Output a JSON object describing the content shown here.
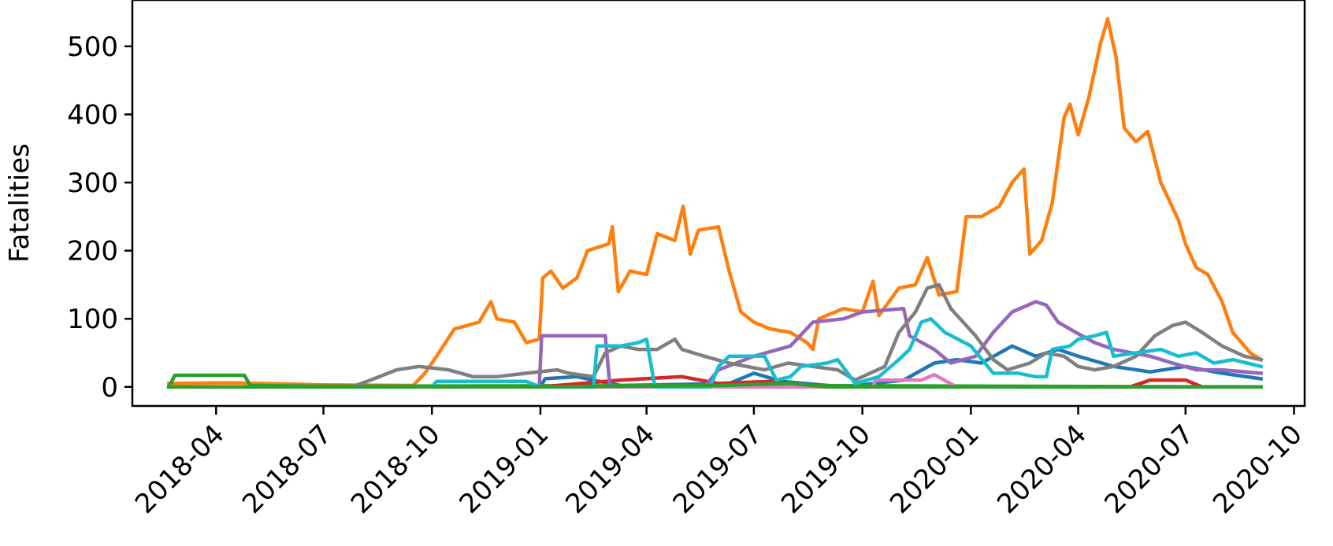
{
  "chart_data": {
    "type": "line",
    "title": "",
    "xlabel": "",
    "ylabel": "Fatalities",
    "x_ticks": [
      "2018-04",
      "2018-07",
      "2018-10",
      "2019-01",
      "2019-04",
      "2019-07",
      "2019-10",
      "2020-01",
      "2020-04",
      "2020-07",
      "2020-10"
    ],
    "y_ticks": [
      0,
      100,
      200,
      300,
      400,
      500
    ],
    "xlim": [
      "2018-01-20",
      "2020-10-10"
    ],
    "ylim": [
      -28,
      568
    ],
    "grid": false,
    "legend": "none",
    "series": [
      {
        "color": "#1f77b4",
        "points": [
          [
            "2018-02-20",
            0
          ],
          [
            "2019-01-01",
            0
          ],
          [
            "2019-01-05",
            12
          ],
          [
            "2019-02-01",
            15
          ],
          [
            "2019-02-20",
            8
          ],
          [
            "2019-03-10",
            2
          ],
          [
            "2019-06-10",
            5
          ],
          [
            "2019-07-01",
            20
          ],
          [
            "2019-07-25",
            8
          ],
          [
            "2019-09-15",
            0
          ],
          [
            "2019-11-05",
            10
          ],
          [
            "2019-12-01",
            35
          ],
          [
            "2019-12-20",
            40
          ],
          [
            "2020-01-10",
            35
          ],
          [
            "2020-02-05",
            60
          ],
          [
            "2020-02-25",
            45
          ],
          [
            "2020-03-15",
            55
          ],
          [
            "2020-04-01",
            45
          ],
          [
            "2020-05-01",
            30
          ],
          [
            "2020-06-01",
            22
          ],
          [
            "2020-07-01",
            30
          ],
          [
            "2020-08-01",
            20
          ],
          [
            "2020-09-03",
            12
          ]
        ]
      },
      {
        "color": "#ff7f0e",
        "points": [
          [
            "2018-02-20",
            5
          ],
          [
            "2018-04-15",
            6
          ],
          [
            "2018-07-01",
            3
          ],
          [
            "2018-09-15",
            2
          ],
          [
            "2018-09-25",
            20
          ],
          [
            "2018-10-05",
            45
          ],
          [
            "2018-10-20",
            85
          ],
          [
            "2018-11-10",
            95
          ],
          [
            "2018-11-20",
            125
          ],
          [
            "2018-11-25",
            100
          ],
          [
            "2018-12-10",
            95
          ],
          [
            "2018-12-20",
            65
          ],
          [
            "2018-12-31",
            70
          ],
          [
            "2019-01-03",
            160
          ],
          [
            "2019-01-10",
            170
          ],
          [
            "2019-01-20",
            145
          ],
          [
            "2019-02-01",
            160
          ],
          [
            "2019-02-10",
            200
          ],
          [
            "2019-02-28",
            210
          ],
          [
            "2019-03-03",
            235
          ],
          [
            "2019-03-08",
            140
          ],
          [
            "2019-03-18",
            170
          ],
          [
            "2019-04-01",
            165
          ],
          [
            "2019-04-10",
            225
          ],
          [
            "2019-04-25",
            215
          ],
          [
            "2019-05-02",
            265
          ],
          [
            "2019-05-08",
            195
          ],
          [
            "2019-05-15",
            230
          ],
          [
            "2019-06-01",
            235
          ],
          [
            "2019-06-10",
            170
          ],
          [
            "2019-06-20",
            110
          ],
          [
            "2019-07-01",
            95
          ],
          [
            "2019-07-15",
            85
          ],
          [
            "2019-08-01",
            80
          ],
          [
            "2019-08-15",
            65
          ],
          [
            "2019-08-20",
            55
          ],
          [
            "2019-08-25",
            100
          ],
          [
            "2019-09-15",
            115
          ],
          [
            "2019-10-01",
            110
          ],
          [
            "2019-10-10",
            155
          ],
          [
            "2019-10-15",
            105
          ],
          [
            "2019-11-01",
            145
          ],
          [
            "2019-11-15",
            150
          ],
          [
            "2019-11-25",
            190
          ],
          [
            "2019-12-05",
            135
          ],
          [
            "2019-12-20",
            140
          ],
          [
            "2019-12-28",
            250
          ],
          [
            "2020-01-10",
            250
          ],
          [
            "2020-01-25",
            265
          ],
          [
            "2020-02-05",
            300
          ],
          [
            "2020-02-15",
            320
          ],
          [
            "2020-02-20",
            195
          ],
          [
            "2020-03-01",
            215
          ],
          [
            "2020-03-10",
            270
          ],
          [
            "2020-03-20",
            395
          ],
          [
            "2020-03-25",
            415
          ],
          [
            "2020-04-01",
            370
          ],
          [
            "2020-04-10",
            425
          ],
          [
            "2020-04-20",
            505
          ],
          [
            "2020-04-26",
            540
          ],
          [
            "2020-05-03",
            485
          ],
          [
            "2020-05-10",
            380
          ],
          [
            "2020-05-20",
            360
          ],
          [
            "2020-05-30",
            375
          ],
          [
            "2020-06-10",
            300
          ],
          [
            "2020-06-25",
            245
          ],
          [
            "2020-07-01",
            210
          ],
          [
            "2020-07-10",
            175
          ],
          [
            "2020-07-20",
            165
          ],
          [
            "2020-08-01",
            125
          ],
          [
            "2020-08-10",
            80
          ],
          [
            "2020-08-25",
            50
          ],
          [
            "2020-09-03",
            40
          ]
        ]
      },
      {
        "color": "#2ca02c",
        "points": [
          [
            "2018-02-20",
            0
          ],
          [
            "2018-02-25",
            17
          ],
          [
            "2018-04-25",
            17
          ],
          [
            "2018-04-30",
            2
          ],
          [
            "2018-07-01",
            1
          ],
          [
            "2019-07-15",
            2
          ],
          [
            "2020-09-03",
            0
          ]
        ]
      },
      {
        "color": "#d62728",
        "points": [
          [
            "2018-02-20",
            0
          ],
          [
            "2019-01-01",
            0
          ],
          [
            "2019-03-10",
            10
          ],
          [
            "2019-05-01",
            15
          ],
          [
            "2019-06-01",
            5
          ],
          [
            "2019-07-15",
            8
          ],
          [
            "2019-09-01",
            0
          ],
          [
            "2020-05-15",
            0
          ],
          [
            "2020-06-01",
            10
          ],
          [
            "2020-07-01",
            10
          ],
          [
            "2020-07-15",
            0
          ],
          [
            "2020-09-03",
            0
          ]
        ]
      },
      {
        "color": "#9467bd",
        "points": [
          [
            "2018-02-20",
            0
          ],
          [
            "2018-12-31",
            0
          ],
          [
            "2019-01-02",
            75
          ],
          [
            "2019-02-25",
            75
          ],
          [
            "2019-03-01",
            0
          ],
          [
            "2019-05-20",
            0
          ],
          [
            "2019-06-01",
            25
          ],
          [
            "2019-07-01",
            45
          ],
          [
            "2019-08-01",
            60
          ],
          [
            "2019-08-20",
            95
          ],
          [
            "2019-09-15",
            100
          ],
          [
            "2019-10-01",
            110
          ],
          [
            "2019-11-05",
            115
          ],
          [
            "2019-11-10",
            75
          ],
          [
            "2019-12-01",
            55
          ],
          [
            "2019-12-15",
            35
          ],
          [
            "2020-01-05",
            45
          ],
          [
            "2020-01-20",
            80
          ],
          [
            "2020-02-05",
            110
          ],
          [
            "2020-02-25",
            125
          ],
          [
            "2020-03-05",
            120
          ],
          [
            "2020-03-15",
            95
          ],
          [
            "2020-03-30",
            80
          ],
          [
            "2020-04-15",
            65
          ],
          [
            "2020-05-01",
            55
          ],
          [
            "2020-06-01",
            45
          ],
          [
            "2020-06-20",
            35
          ],
          [
            "2020-07-10",
            25
          ],
          [
            "2020-08-01",
            25
          ],
          [
            "2020-09-03",
            20
          ]
        ]
      },
      {
        "color": "#e377c2",
        "points": [
          [
            "2018-02-20",
            0
          ],
          [
            "2019-10-10",
            0
          ],
          [
            "2019-10-12",
            10
          ],
          [
            "2019-11-20",
            10
          ],
          [
            "2019-12-01",
            18
          ],
          [
            "2019-12-20",
            0
          ],
          [
            "2020-09-03",
            0
          ]
        ]
      },
      {
        "color": "#7f7f7f",
        "points": [
          [
            "2018-02-20",
            0
          ],
          [
            "2018-07-25",
            0
          ],
          [
            "2018-08-10",
            10
          ],
          [
            "2018-09-01",
            25
          ],
          [
            "2018-09-20",
            30
          ],
          [
            "2018-10-15",
            25
          ],
          [
            "2018-11-05",
            15
          ],
          [
            "2018-11-25",
            15
          ],
          [
            "2018-12-20",
            20
          ],
          [
            "2019-01-15",
            25
          ],
          [
            "2019-01-25",
            20
          ],
          [
            "2019-02-15",
            15
          ],
          [
            "2019-02-25",
            50
          ],
          [
            "2019-03-10",
            60
          ],
          [
            "2019-03-25",
            55
          ],
          [
            "2019-04-10",
            55
          ],
          [
            "2019-04-25",
            70
          ],
          [
            "2019-05-01",
            55
          ],
          [
            "2019-05-20",
            45
          ],
          [
            "2019-06-10",
            35
          ],
          [
            "2019-06-25",
            30
          ],
          [
            "2019-07-10",
            25
          ],
          [
            "2019-07-30",
            35
          ],
          [
            "2019-08-20",
            30
          ],
          [
            "2019-09-10",
            25
          ],
          [
            "2019-09-25",
            10
          ],
          [
            "2019-10-20",
            30
          ],
          [
            "2019-11-01",
            80
          ],
          [
            "2019-11-15",
            110
          ],
          [
            "2019-11-25",
            145
          ],
          [
            "2019-12-05",
            150
          ],
          [
            "2019-12-15",
            115
          ],
          [
            "2020-01-05",
            75
          ],
          [
            "2020-01-20",
            40
          ],
          [
            "2020-02-01",
            25
          ],
          [
            "2020-02-20",
            35
          ],
          [
            "2020-03-05",
            50
          ],
          [
            "2020-03-20",
            45
          ],
          [
            "2020-04-01",
            30
          ],
          [
            "2020-04-15",
            25
          ],
          [
            "2020-05-01",
            30
          ],
          [
            "2020-05-20",
            45
          ],
          [
            "2020-06-05",
            75
          ],
          [
            "2020-06-20",
            90
          ],
          [
            "2020-07-01",
            95
          ],
          [
            "2020-07-15",
            80
          ],
          [
            "2020-08-01",
            60
          ],
          [
            "2020-08-20",
            45
          ],
          [
            "2020-09-03",
            40
          ]
        ]
      },
      {
        "color": "#17becf",
        "points": [
          [
            "2018-02-20",
            0
          ],
          [
            "2018-10-01",
            0
          ],
          [
            "2018-10-05",
            8
          ],
          [
            "2018-12-20",
            8
          ],
          [
            "2019-01-01",
            0
          ],
          [
            "2019-02-15",
            0
          ],
          [
            "2019-02-18",
            60
          ],
          [
            "2019-03-10",
            60
          ],
          [
            "2019-03-25",
            65
          ],
          [
            "2019-04-01",
            70
          ],
          [
            "2019-04-08",
            0
          ],
          [
            "2019-05-25",
            0
          ],
          [
            "2019-06-01",
            30
          ],
          [
            "2019-06-10",
            45
          ],
          [
            "2019-07-10",
            45
          ],
          [
            "2019-07-20",
            10
          ],
          [
            "2019-08-01",
            15
          ],
          [
            "2019-08-10",
            30
          ],
          [
            "2019-09-01",
            35
          ],
          [
            "2019-09-10",
            40
          ],
          [
            "2019-09-25",
            5
          ],
          [
            "2019-10-15",
            15
          ],
          [
            "2019-11-01",
            40
          ],
          [
            "2019-11-10",
            55
          ],
          [
            "2019-11-20",
            95
          ],
          [
            "2019-11-28",
            100
          ],
          [
            "2019-12-10",
            80
          ],
          [
            "2020-01-01",
            60
          ],
          [
            "2020-01-20",
            20
          ],
          [
            "2020-02-10",
            20
          ],
          [
            "2020-02-25",
            15
          ],
          [
            "2020-03-05",
            15
          ],
          [
            "2020-03-10",
            55
          ],
          [
            "2020-03-25",
            60
          ],
          [
            "2020-04-01",
            70
          ],
          [
            "2020-04-15",
            75
          ],
          [
            "2020-04-25",
            80
          ],
          [
            "2020-05-01",
            45
          ],
          [
            "2020-05-20",
            50
          ],
          [
            "2020-06-10",
            55
          ],
          [
            "2020-06-25",
            45
          ],
          [
            "2020-07-10",
            50
          ],
          [
            "2020-07-25",
            35
          ],
          [
            "2020-08-10",
            40
          ],
          [
            "2020-09-03",
            30
          ]
        ]
      },
      {
        "color": "#2ca02c",
        "points": [
          [
            "2018-02-20",
            0
          ],
          [
            "2019-01-01",
            0
          ],
          [
            "2019-06-01",
            2
          ],
          [
            "2019-08-01",
            5
          ],
          [
            "2019-09-01",
            0
          ],
          [
            "2020-09-03",
            0
          ]
        ]
      }
    ]
  }
}
